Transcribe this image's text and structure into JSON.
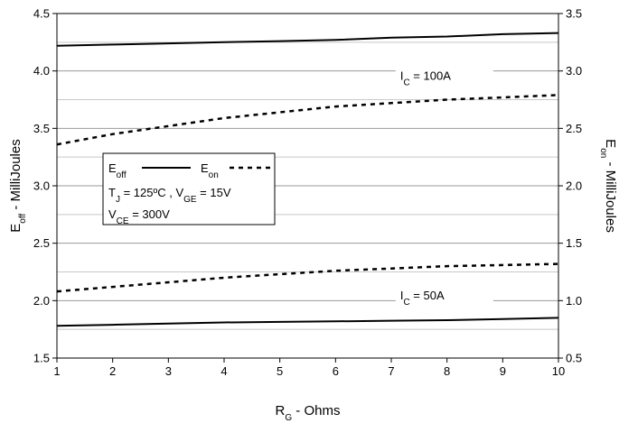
{
  "chart_data": {
    "type": "line",
    "x": [
      1,
      2,
      3,
      4,
      5,
      6,
      7,
      8,
      9,
      10
    ],
    "xlabel": {
      "main": "R",
      "sub": "G",
      "rest": " - Ohms"
    },
    "ylabel_left": {
      "main": "E",
      "sub": "off",
      "rest": " - MilliJoules"
    },
    "ylabel_right": {
      "main": "E",
      "sub": "on",
      "rest": " - MilliJoules"
    },
    "xlim": [
      1,
      10
    ],
    "ylim_left": [
      1.5,
      4.5
    ],
    "ylim_right": [
      0.5,
      3.5
    ],
    "x_ticks": [
      "1",
      "2",
      "3",
      "4",
      "5",
      "6",
      "7",
      "8",
      "9",
      "10"
    ],
    "y_ticks_left": [
      "1.5",
      "2.0",
      "2.5",
      "3.0",
      "3.5",
      "4.0",
      "4.5"
    ],
    "y_ticks_right": [
      "0.5",
      "1.0",
      "1.5",
      "2.0",
      "2.5",
      "3.0",
      "3.5"
    ],
    "grid": "horizontal",
    "series": [
      {
        "key": "eoff_100",
        "axis": "left",
        "style": "solid",
        "values": [
          4.22,
          4.23,
          4.24,
          4.25,
          4.26,
          4.27,
          4.29,
          4.3,
          4.32,
          4.33
        ]
      },
      {
        "key": "eon_100",
        "axis": "right",
        "style": "dashed",
        "values": [
          2.36,
          2.45,
          2.52,
          2.59,
          2.64,
          2.69,
          2.72,
          2.75,
          2.77,
          2.79
        ]
      },
      {
        "key": "eon_50",
        "axis": "right",
        "style": "dashed",
        "values": [
          1.08,
          1.12,
          1.16,
          1.2,
          1.23,
          1.26,
          1.28,
          1.3,
          1.31,
          1.32
        ]
      },
      {
        "key": "eoff_50",
        "axis": "left",
        "style": "solid",
        "values": [
          1.78,
          1.79,
          1.8,
          1.81,
          1.815,
          1.82,
          1.825,
          1.83,
          1.84,
          1.85
        ]
      }
    ],
    "annotations": [
      {
        "key": "ic_100",
        "main": "I",
        "sub": "C",
        "rest": " = 100A",
        "series": "eoff_100"
      },
      {
        "key": "ic_50",
        "main": "I",
        "sub": "C",
        "rest": " = 50A",
        "series": "eoff_50"
      }
    ],
    "legend": {
      "placement": "upper-left",
      "entries": [
        {
          "main": "E",
          "sub": "off",
          "style": "solid"
        },
        {
          "main": "E",
          "sub": "on",
          "style": "dashed"
        }
      ],
      "conditions": [
        [
          {
            "main": "T",
            "sub": "J",
            "rest": " = 125ºC ,  "
          },
          {
            "main": "V",
            "sub": "GE",
            "rest": " = 15V"
          }
        ],
        [
          {
            "main": "V",
            "sub": "CE",
            "rest": " = 300V"
          }
        ]
      ]
    }
  }
}
